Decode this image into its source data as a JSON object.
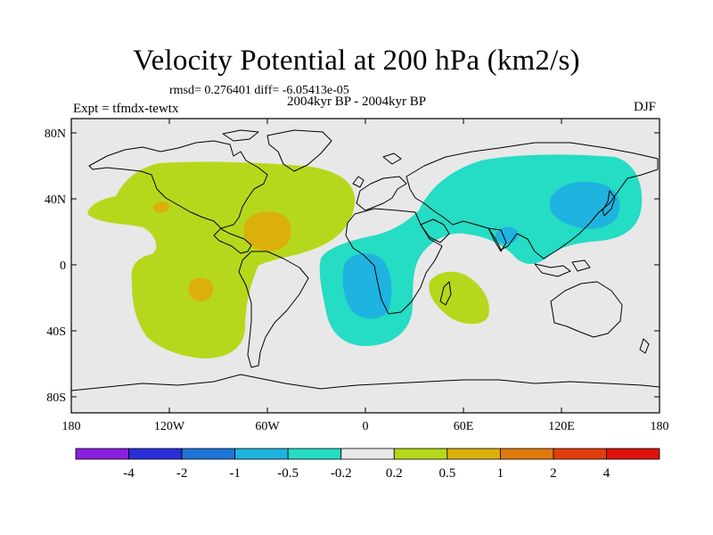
{
  "title": "Velocity Potential at 200 hPa (km2/s)",
  "stats": "rmsd= 0.276401  diff= -6.05413e-05",
  "subtitle": "2004kyr BP - 2004kyr BP",
  "experiment": "Expt = tfmdx-tewtx",
  "season": "DJF",
  "map": {
    "projection": "cylindrical equidistant",
    "extent": {
      "lon": [
        -180,
        180
      ],
      "lat": [
        -90,
        90
      ]
    },
    "background_color": "#e8e8e8",
    "coastline_color": "#000000",
    "lat_labels": [
      "80N",
      "40N",
      "0",
      "40S",
      "80S"
    ],
    "lon_labels": [
      "180",
      "120W",
      "60W",
      "0",
      "60E",
      "120E",
      "180"
    ]
  },
  "colorbar": {
    "labels": [
      "-4",
      "-2",
      "-1",
      "-0.5",
      "-0.2",
      "0.2",
      "0.5",
      "1",
      "2",
      "4"
    ],
    "colors": [
      "#8a1fe0",
      "#2a2ed8",
      "#1e74d6",
      "#1fb3df",
      "#25dcc4",
      "#e8e8e8",
      "#b6d81c",
      "#dcb00a",
      "#e07a0c",
      "#e03e0c",
      "#e0100e"
    ]
  },
  "chart_data": {
    "type": "heatmap",
    "title": "Velocity Potential at 200 hPa (km2/s)",
    "units": "km2/s",
    "levels": [
      -4,
      -2,
      -1,
      -0.5,
      -0.2,
      0.2,
      0.5,
      1,
      2,
      4
    ],
    "regions": [
      {
        "name": "Americas and North Atlantic",
        "range": "0.2 to 0.5",
        "color": "#b6d81c"
      },
      {
        "name": "Caribbean",
        "range": "0.5 to 1",
        "color": "#dcb00a"
      },
      {
        "name": "East Pacific near 20N",
        "range": "0.5 to 1",
        "color": "#dcb00a"
      },
      {
        "name": "South Pacific near 20S",
        "range": "0.5 to 1",
        "color": "#dcb00a"
      },
      {
        "name": "Madagascar and SW Indian Ocean",
        "range": "0.2 to 0.5",
        "color": "#b6d81c"
      },
      {
        "name": "Africa, Eurasia, Indian Ocean band",
        "range": "-0.5 to -0.2",
        "color": "#25dcc4"
      },
      {
        "name": "Central Africa and South Atlantic",
        "range": "-1 to -0.5",
        "color": "#1fb3df"
      },
      {
        "name": "East Asia and NW Pacific",
        "range": "-1 to -0.5",
        "color": "#1fb3df"
      },
      {
        "name": "Northern India",
        "range": "-1 to -0.5",
        "color": "#1fb3df"
      }
    ]
  }
}
